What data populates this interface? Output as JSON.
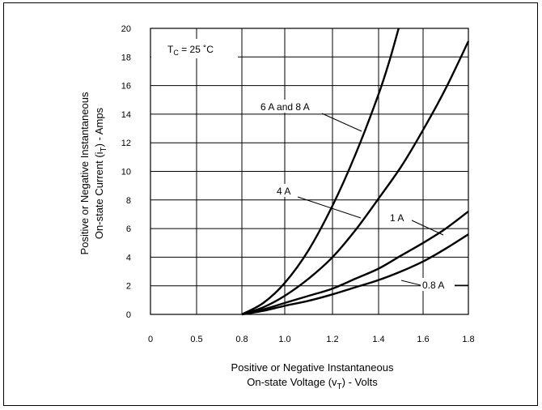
{
  "chart_data": {
    "type": "line",
    "title": "",
    "xlabel": {
      "line1": "Positive or Negative Instantaneous",
      "line2_pre": "On-state Voltage (v",
      "line2_sub": "T",
      "line2_post": ") - Volts"
    },
    "ylabel": {
      "line1": "Positive or Negative Instantaneous",
      "line2_pre": "On-state Current (i",
      "line2_sub": "T",
      "line2_post": ") - Amps"
    },
    "xlim": [
      0,
      1.8
    ],
    "ylim": [
      0,
      20
    ],
    "x_ticks": [
      "0",
      "0.5",
      "0.8",
      "1.0",
      "1.2",
      "1.4",
      "1.6",
      "1.8"
    ],
    "y_ticks": [
      "0",
      "2",
      "4",
      "6",
      "8",
      "10",
      "12",
      "14",
      "16",
      "18",
      "20"
    ],
    "grid": true,
    "condition": {
      "pre": "T",
      "sub": "C",
      "post": " = 25 ˚C"
    },
    "series": [
      {
        "name": "6 A and 8 A",
        "x": [
          0.8,
          0.9,
          1.0,
          1.1,
          1.2,
          1.3,
          1.4,
          1.45,
          1.49
        ],
        "y": [
          0,
          0.8,
          2.2,
          4.5,
          7.6,
          11.2,
          15.4,
          17.8,
          20
        ]
      },
      {
        "name": "4 A",
        "x": [
          0.8,
          0.9,
          1.0,
          1.1,
          1.2,
          1.3,
          1.4,
          1.5,
          1.6,
          1.7,
          1.8
        ],
        "y": [
          0,
          0.5,
          1.3,
          2.5,
          4.0,
          5.9,
          8.1,
          10.3,
          12.9,
          15.8,
          19.1
        ]
      },
      {
        "name": "1 A",
        "x": [
          0.8,
          0.9,
          1.0,
          1.1,
          1.2,
          1.3,
          1.4,
          1.5,
          1.6,
          1.7,
          1.8
        ],
        "y": [
          0,
          0.35,
          0.8,
          1.3,
          1.8,
          2.5,
          3.2,
          4.1,
          5.0,
          6.0,
          7.2
        ]
      },
      {
        "name": "0.8 A",
        "x": [
          0.8,
          0.9,
          1.0,
          1.1,
          1.2,
          1.3,
          1.4,
          1.5,
          1.6,
          1.7,
          1.8
        ],
        "y": [
          0,
          0.25,
          0.6,
          0.95,
          1.4,
          1.9,
          2.4,
          3.0,
          3.7,
          4.6,
          5.6
        ]
      }
    ]
  }
}
